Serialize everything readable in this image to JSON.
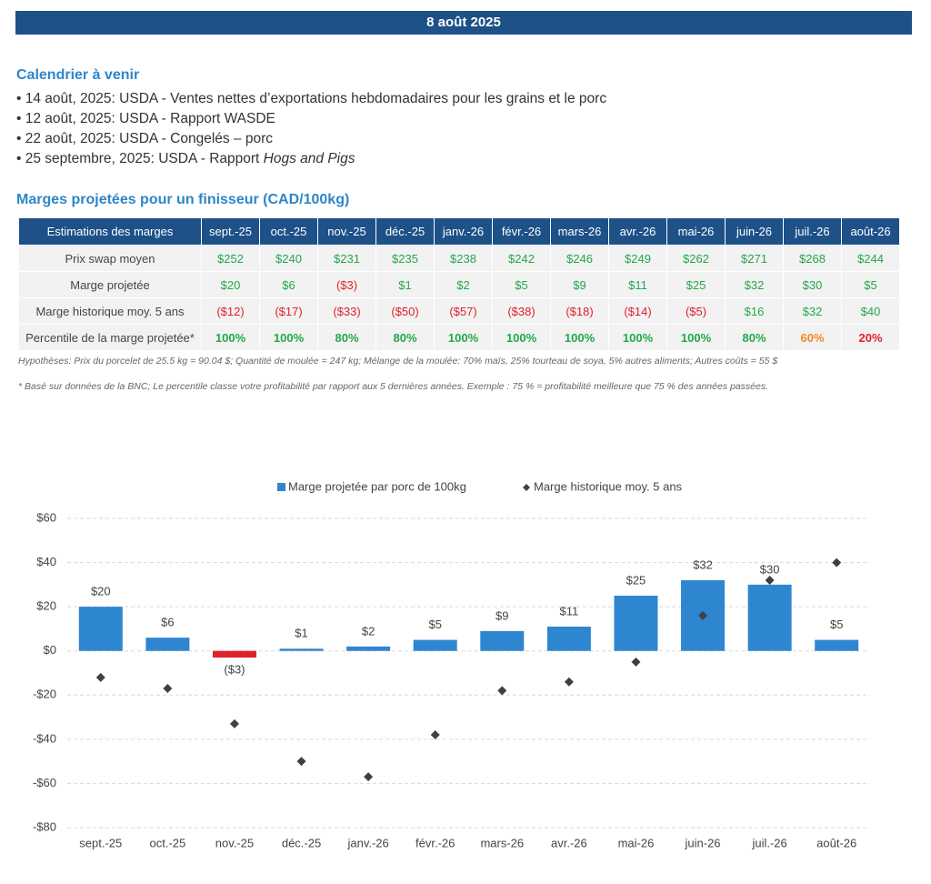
{
  "header": {
    "date": "8 août 2025"
  },
  "calendar": {
    "title": "Calendrier à venir",
    "items": [
      {
        "text": "14 août, 2025: USDA - Ventes nettes d’exportations hebdomadaires pour les grains et le porc"
      },
      {
        "text": "12 août, 2025: USDA - Rapport WASDE"
      },
      {
        "text": "22 août, 2025: USDA - Congelés – porc"
      },
      {
        "text": "25 septembre, 2025: USDA - Rapport ",
        "italic": "Hogs and Pigs"
      }
    ]
  },
  "table": {
    "title": "Marges projetées pour un finisseur (CAD/100kg)",
    "columns": [
      "Estimations des marges",
      "sept.-25",
      "oct.-25",
      "nov.-25",
      "déc.-25",
      "janv.-26",
      "févr.-26",
      "mars-26",
      "avr.-26",
      "mai-26",
      "juin-26",
      "juil.-26",
      "août-26"
    ],
    "rows": [
      {
        "label": "Prix swap moyen",
        "cells": [
          "$252",
          "$240",
          "$231",
          "$235",
          "$238",
          "$242",
          "$246",
          "$249",
          "$262",
          "$271",
          "$268",
          "$244"
        ],
        "colors": [
          "#22a84a",
          "#22a84a",
          "#22a84a",
          "#22a84a",
          "#22a84a",
          "#22a84a",
          "#22a84a",
          "#22a84a",
          "#22a84a",
          "#22a84a",
          "#22a84a",
          "#22a84a"
        ]
      },
      {
        "label": "Marge projetée",
        "cells": [
          "$20",
          "$6",
          "($3)",
          "$1",
          "$2",
          "$5",
          "$9",
          "$11",
          "$25",
          "$32",
          "$30",
          "$5"
        ],
        "colors": [
          "#22a84a",
          "#22a84a",
          "#e0212b",
          "#22a84a",
          "#22a84a",
          "#22a84a",
          "#22a84a",
          "#22a84a",
          "#22a84a",
          "#22a84a",
          "#22a84a",
          "#22a84a"
        ]
      },
      {
        "label": "Marge historique moy. 5 ans",
        "cells": [
          "($12)",
          "($17)",
          "($33)",
          "($50)",
          "($57)",
          "($38)",
          "($18)",
          "($14)",
          "($5)",
          "$16",
          "$32",
          "$40"
        ],
        "colors": [
          "#e0212b",
          "#e0212b",
          "#e0212b",
          "#e0212b",
          "#e0212b",
          "#e0212b",
          "#e0212b",
          "#e0212b",
          "#e0212b",
          "#22a84a",
          "#22a84a",
          "#22a84a"
        ]
      },
      {
        "label": "Percentile de la marge projetée*",
        "cells": [
          "100%",
          "100%",
          "80%",
          "80%",
          "100%",
          "100%",
          "100%",
          "100%",
          "100%",
          "80%",
          "60%",
          "20%"
        ],
        "colors": [
          "#22a84a",
          "#22a84a",
          "#22a84a",
          "#22a84a",
          "#22a84a",
          "#22a84a",
          "#22a84a",
          "#22a84a",
          "#22a84a",
          "#22a84a",
          "#f08a24",
          "#e0212b"
        ]
      }
    ]
  },
  "notes": [
    "Hypothèses: Prix du porcelet de 25.5 kg = 90.04 $; Quantité de moulée = 247 kg; Mélange de la moulée: 70% maïs, 25% tourteau de soya, 5% autres aliments; Autres coûts = 55 $",
    "* Basé sur données de la BNC; Le percentile classe votre profitabilité par rapport aux 5 dernières années. Exemple : 75 % = profitabilité meilleure que 75 % des années passées."
  ],
  "chart_data": {
    "type": "bar",
    "categories": [
      "sept.-25",
      "oct.-25",
      "nov.-25",
      "déc.-25",
      "janv.-26",
      "févr.-26",
      "mars-26",
      "avr.-26",
      "mai-26",
      "juin-26",
      "juil.-26",
      "août-26"
    ],
    "series": [
      {
        "name": "Marge projetée par porc de 100kg",
        "type": "bar",
        "color": "#2f86d0",
        "negative_color": "#e0212b",
        "values": [
          20,
          6,
          -3,
          1,
          2,
          5,
          9,
          11,
          25,
          32,
          30,
          5
        ],
        "value_labels": [
          "$20",
          "$6",
          "($3)",
          "$1",
          "$2",
          "$5",
          "$9",
          "$11",
          "$25",
          "$32",
          "$30",
          "$5"
        ]
      },
      {
        "name": "Marge historique moy. 5 ans",
        "type": "scatter",
        "color": "#404040",
        "values": [
          -12,
          -17,
          -33,
          -50,
          -57,
          -38,
          -18,
          -14,
          -5,
          16,
          32,
          40
        ]
      }
    ],
    "ylim": [
      -80,
      60
    ],
    "yticks": [
      {
        "value": -80,
        "label": "-$80"
      },
      {
        "value": -60,
        "label": "-$60"
      },
      {
        "value": -40,
        "label": "-$40"
      },
      {
        "value": -20,
        "label": "-$20"
      },
      {
        "value": 0,
        "label": "$0"
      },
      {
        "value": 20,
        "label": "$20"
      },
      {
        "value": 40,
        "label": "$40"
      },
      {
        "value": 60,
        "label": "$60"
      }
    ],
    "grid": true,
    "legend": "top"
  }
}
